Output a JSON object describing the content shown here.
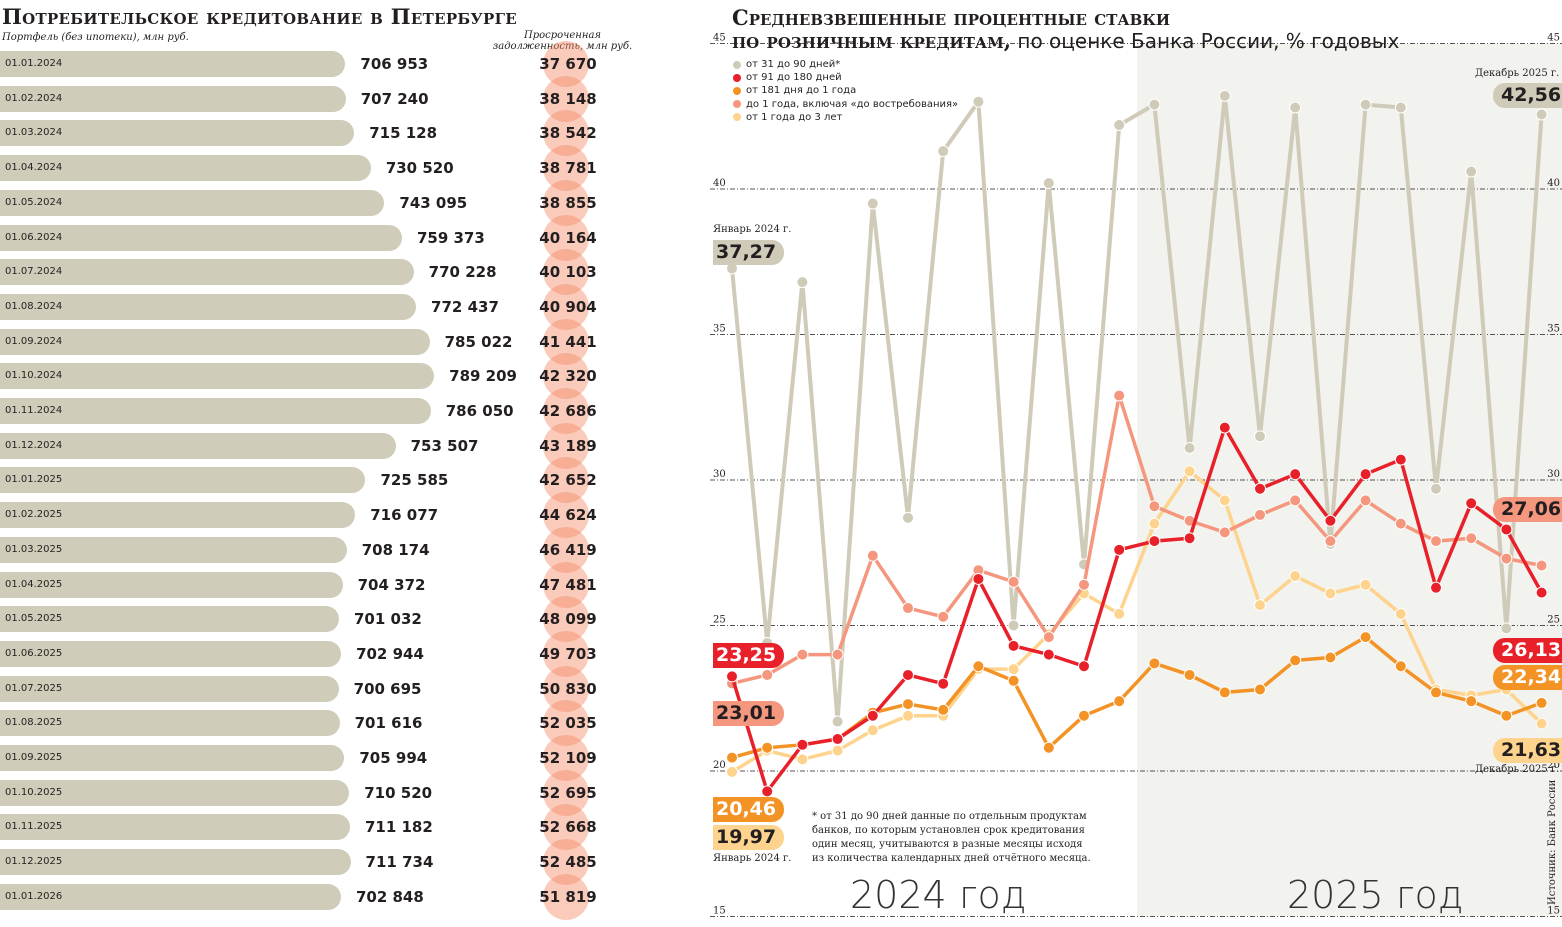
{
  "left_panel": {
    "title": "Потребительское кредитование в Петербурге",
    "portfolio_label": "Портфель (без ипотеки), млн руб.",
    "overdue_label_1": "Просроченная",
    "overdue_label_2": "задолженность, млн руб.",
    "rows": [
      {
        "date": "01.01.2024",
        "portfolio": "706 953",
        "overdue": "37 670"
      },
      {
        "date": "01.02.2024",
        "portfolio": "707 240",
        "overdue": "38 148"
      },
      {
        "date": "01.03.2024",
        "portfolio": "715 128",
        "overdue": "38 542"
      },
      {
        "date": "01.04.2024",
        "portfolio": "730 520",
        "overdue": "38 781"
      },
      {
        "date": "01.05.2024",
        "portfolio": "743 095",
        "overdue": "38 855"
      },
      {
        "date": "01.06.2024",
        "portfolio": "759 373",
        "overdue": "40 164"
      },
      {
        "date": "01.07.2024",
        "portfolio": "770 228",
        "overdue": "40 103"
      },
      {
        "date": "01.08.2024",
        "portfolio": "772 437",
        "overdue": "40 904"
      },
      {
        "date": "01.09.2024",
        "portfolio": "785 022",
        "overdue": "41 441"
      },
      {
        "date": "01.10.2024",
        "portfolio": "789 209",
        "overdue": "42 320"
      },
      {
        "date": "01.11.2024",
        "portfolio": "786 050",
        "overdue": "42 686"
      },
      {
        "date": "01.12.2024",
        "portfolio": "753 507",
        "overdue": "43 189"
      },
      {
        "date": "01.01.2025",
        "portfolio": "725 585",
        "overdue": "42 652"
      },
      {
        "date": "01.02.2025",
        "portfolio": "716 077",
        "overdue": "44 624"
      },
      {
        "date": "01.03.2025",
        "portfolio": "708 174",
        "overdue": "46 419"
      },
      {
        "date": "01.04.2025",
        "portfolio": "704 372",
        "overdue": "47 481"
      },
      {
        "date": "01.05.2025",
        "portfolio": "701 032",
        "overdue": "48 099"
      },
      {
        "date": "01.06.2025",
        "portfolio": "702 944",
        "overdue": "49 703"
      },
      {
        "date": "01.07.2025",
        "portfolio": "700 695",
        "overdue": "50 830"
      },
      {
        "date": "01.08.2025",
        "portfolio": "701 616",
        "overdue": "52 035"
      },
      {
        "date": "01.09.2025",
        "portfolio": "705 994",
        "overdue": "52 109"
      },
      {
        "date": "01.10.2025",
        "portfolio": "710 520",
        "overdue": "52 695"
      },
      {
        "date": "01.11.2025",
        "portfolio": "711 182",
        "overdue": "52 668"
      },
      {
        "date": "01.12.2025",
        "portfolio": "711 734",
        "overdue": "52 485"
      },
      {
        "date": "01.01.2026",
        "portfolio": "702 848",
        "overdue": "51 819"
      }
    ],
    "colors": {
      "bar": "#cfcdb9",
      "circle": "#f8b49e"
    }
  },
  "right_panel": {
    "title_line1": "Средневзвешенные процентные ставки",
    "title_line2_bold": "по розничным кредитам,",
    "title_line2_light": " по оценке Банка России, % годовых",
    "start_caption": "Январь 2024 г.",
    "end_caption": "Декабрь 2025 г.",
    "footnote": [
      "* от 31 до 90 дней данные по отдельным продуктам",
      "банков, по которым установлен срок кредитования",
      "один месяц, учитываются в разные месяцы исходя",
      "из количества календарных дней отчётного месяца."
    ],
    "year_2024": "2024 год",
    "year_2025": "2025 год",
    "source": "Источник: Банк России"
  },
  "chart_data": {
    "type": "line",
    "title": "Средневзвешенные процентные ставки по розничным кредитам, по оценке Банка России, % годовых",
    "xlabel": "",
    "ylabel": "% годовых",
    "ylim": [
      15,
      45
    ],
    "yticks": [
      15,
      20,
      25,
      30,
      35,
      40,
      45
    ],
    "grid": true,
    "legend_position": "top-left",
    "x": [
      "2024-01",
      "2024-02",
      "2024-03",
      "2024-04",
      "2024-05",
      "2024-06",
      "2024-07",
      "2024-08",
      "2024-09",
      "2024-10",
      "2024-11",
      "2024-12",
      "2025-01",
      "2025-02",
      "2025-03",
      "2025-04",
      "2025-05",
      "2025-06",
      "2025-07",
      "2025-08",
      "2025-09",
      "2025-10",
      "2025-11",
      "2025-12"
    ],
    "series": [
      {
        "name": "от 31 до 90 дней*",
        "color": "#cfcbb8",
        "values": [
          37.27,
          24.4,
          36.8,
          21.7,
          39.5,
          28.7,
          41.3,
          43.0,
          25.0,
          40.2,
          27.1,
          42.2,
          42.9,
          31.1,
          43.2,
          31.5,
          42.8,
          27.8,
          42.9,
          42.8,
          29.7,
          40.6,
          24.9,
          42.56
        ]
      },
      {
        "name": "от 91 до 180 дней",
        "color": "#e8202a",
        "values": [
          23.25,
          19.3,
          20.9,
          21.1,
          21.9,
          23.3,
          23.0,
          26.6,
          24.3,
          24.0,
          23.6,
          27.6,
          27.9,
          28.0,
          31.8,
          29.7,
          30.2,
          28.6,
          30.2,
          30.7,
          26.3,
          29.2,
          28.3,
          26.13
        ]
      },
      {
        "name": "от 181 дня до 1 года",
        "color": "#f39325",
        "values": [
          20.46,
          20.8,
          20.9,
          21.1,
          22.0,
          22.3,
          22.1,
          23.6,
          23.1,
          20.8,
          21.9,
          22.4,
          23.7,
          23.3,
          22.7,
          22.8,
          23.8,
          23.9,
          24.6,
          23.6,
          22.7,
          22.4,
          21.9,
          22.34
        ]
      },
      {
        "name": "до 1 года, включая «до востребования»",
        "color": "#f4977e",
        "values": [
          23.01,
          23.3,
          24.0,
          24.0,
          27.4,
          25.6,
          25.3,
          26.9,
          26.5,
          24.6,
          26.4,
          32.9,
          29.1,
          28.6,
          28.2,
          28.8,
          29.3,
          27.9,
          29.3,
          28.5,
          27.9,
          28.0,
          27.3,
          27.06
        ]
      },
      {
        "name": "от 1 года до 3 лет",
        "color": "#fdd38e",
        "values": [
          19.97,
          20.7,
          20.4,
          20.7,
          21.4,
          21.9,
          21.9,
          23.5,
          23.5,
          24.7,
          26.1,
          25.4,
          28.5,
          30.3,
          29.3,
          25.7,
          26.7,
          26.1,
          26.4,
          25.4,
          22.8,
          22.6,
          22.8,
          21.63
        ]
      }
    ],
    "highlighted_period": "2025",
    "annotations": [
      {
        "series": "от 31 до 90 дней*",
        "point": "2024-01",
        "label": "37,27",
        "caption": "Январь 2024 г."
      },
      {
        "series": "от 91 до 180 дней",
        "point": "2024-01",
        "label": "23,25"
      },
      {
        "series": "до 1 года, включая «до востребования»",
        "point": "2024-01",
        "label": "23,01"
      },
      {
        "series": "от 181 дня до 1 года",
        "point": "2024-01",
        "label": "20,46"
      },
      {
        "series": "от 1 года до 3 лет",
        "point": "2024-01",
        "label": "19,97",
        "caption": "Январь 2024 г."
      },
      {
        "series": "от 31 до 90 дней*",
        "point": "2025-12",
        "label": "42,56",
        "caption": "Декабрь 2025 г."
      },
      {
        "series": "до 1 года, включая «до востребования»",
        "point": "2025-12",
        "label": "27,06"
      },
      {
        "series": "от 91 до 180 дней",
        "point": "2025-12",
        "label": "26,13"
      },
      {
        "series": "от 181 дня до 1 года",
        "point": "2025-12",
        "label": "22,34"
      },
      {
        "series": "от 1 года до 3 лет",
        "point": "2025-12",
        "label": "21,63",
        "caption": "Декабрь 2025 г."
      }
    ]
  }
}
